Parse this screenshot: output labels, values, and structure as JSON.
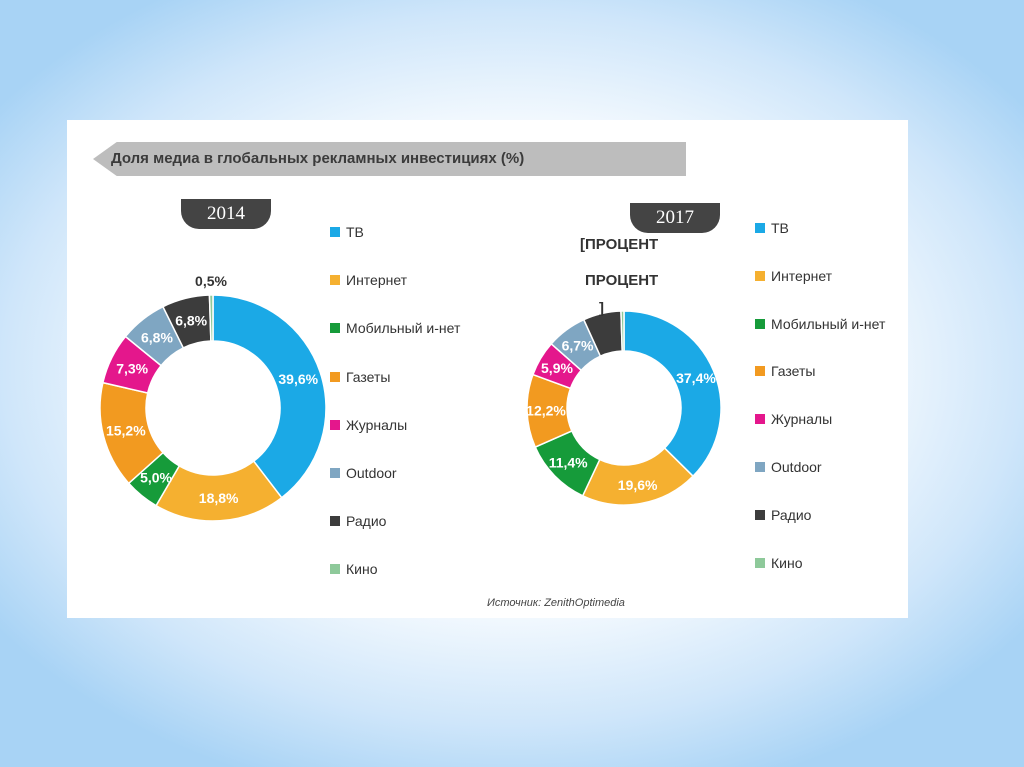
{
  "title": "Доля медиа в глобальных рекламных инвестициях (%)",
  "source": "Источник: ZenithOptimedia",
  "overlay_text": {
    "line1": "[ПРОЦЕНТ",
    "line2": "ПРОЦЕНТ",
    "line3": "]"
  },
  "legend_colors": [
    "#1ba9e6",
    "#f5b030",
    "#169b3a",
    "#f29a20",
    "#e4178c",
    "#7fa6c2",
    "#3c3c3c",
    "#8ec99a"
  ],
  "chart_data": [
    {
      "type": "pie",
      "year": "2014",
      "categories": [
        "ТВ",
        "Интернет",
        "Мобильный и-нет",
        "Газеты",
        "Журналы",
        "Outdoor",
        "Радио",
        "Кино"
      ],
      "values": [
        39.6,
        18.8,
        5.0,
        15.2,
        7.3,
        6.8,
        6.8,
        0.5
      ],
      "labels": [
        "39,6%",
        "18,8%",
        "5,0%",
        "15,2%",
        "7,3%",
        "6,8%",
        "6,8%",
        "0,5%"
      ],
      "colors": [
        "#1ba9e6",
        "#f5b030",
        "#169b3a",
        "#f29a20",
        "#e4178c",
        "#7fa6c2",
        "#3c3c3c",
        "#8ec99a"
      ]
    },
    {
      "type": "pie",
      "year": "2017",
      "categories": [
        "ТВ",
        "Интернет",
        "Мобильный и-нет",
        "Газеты",
        "Журналы",
        "Outdoor",
        "Радио",
        "Кино"
      ],
      "values": [
        37.4,
        19.6,
        11.4,
        12.2,
        5.9,
        6.7,
        6.3,
        0.5
      ],
      "labels": [
        "37,4%",
        "19,6%",
        "11,4%",
        "12,2%",
        "5,9%",
        "6,7%",
        "",
        ""
      ],
      "colors": [
        "#1ba9e6",
        "#f5b030",
        "#169b3a",
        "#f29a20",
        "#e4178c",
        "#7fa6c2",
        "#3c3c3c",
        "#8ec99a"
      ]
    }
  ]
}
